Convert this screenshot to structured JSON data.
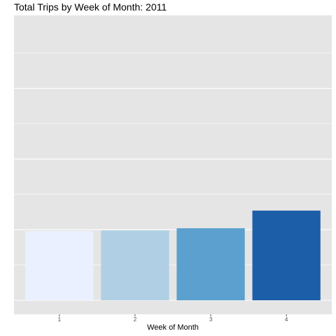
{
  "chart_data": {
    "type": "bar",
    "title": "Total Trips by Week of Month: 2011",
    "xlabel": "Week of Month",
    "ylabel": "",
    "categories": [
      "1",
      "2",
      "3",
      "4"
    ],
    "values": [
      0.98,
      0.99,
      1.02,
      1.27
    ],
    "ylim": [
      0,
      3.8
    ],
    "grid": true,
    "legend": "none",
    "bar_colors": [
      "#EAF0FF",
      "#B0CFE4",
      "#5BA0CE",
      "#1D5EA8"
    ],
    "panel_background": "#E5E5E5",
    "gridline_color": "#FFFFFF"
  }
}
